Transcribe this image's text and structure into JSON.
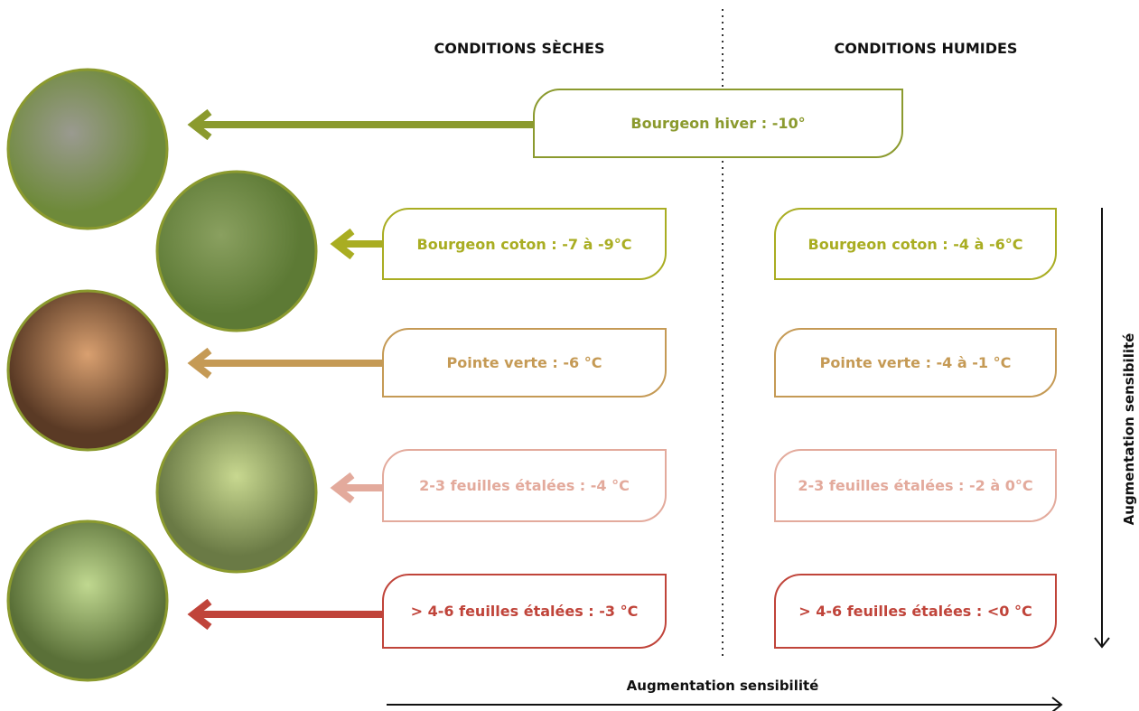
{
  "headers": {
    "dry": "CONDITIONS SÈCHES",
    "humid": "CONDITIONS HUMIDES"
  },
  "top_stage": "Bourgeon hiver : -10°",
  "rows": [
    {
      "dry": "Bourgeon coton : -7 à -9°C",
      "humid": "Bourgeon coton : -4 à -6°C"
    },
    {
      "dry": "Pointe verte : -6 °C",
      "humid": "Pointe verte : -4 à -1 °C"
    },
    {
      "dry": "2-3 feuilles étalées : -4 °C",
      "humid": "2-3 feuilles étalées : -2 à 0°C"
    },
    {
      "dry": "> 4-6 feuilles étalées : -3 °C",
      "humid": "> 4-6 feuilles étalées : <0 °C"
    }
  ],
  "axes": {
    "horizontal": "Augmentation sensibilité",
    "vertical": "Augmentation sensibilité"
  }
}
